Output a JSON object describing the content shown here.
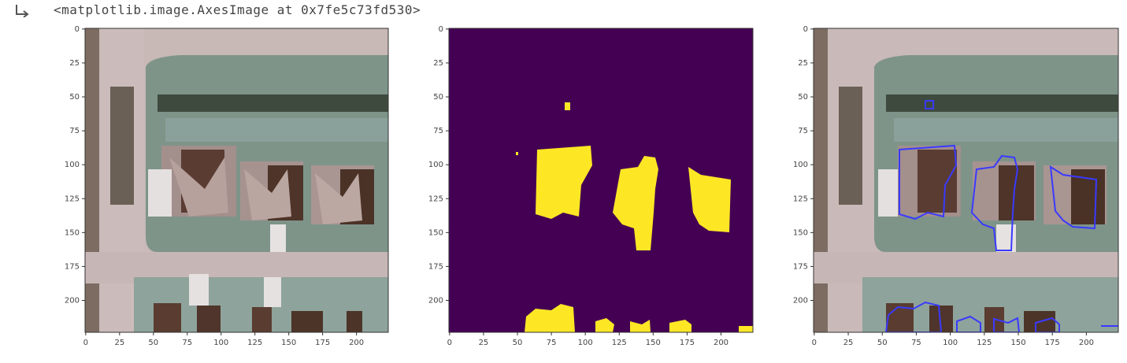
{
  "cell_output": {
    "prompt_icon": "output-arrow-icon",
    "repr_text": "<matplotlib.image.AxesImage at 0x7fe5c73fd530>"
  },
  "figure": {
    "panels": [
      {
        "name": "rgb-image",
        "xticks": [
          "0",
          "25",
          "50",
          "75",
          "100",
          "125",
          "150",
          "175",
          "200"
        ],
        "yticks": [
          "0",
          "25",
          "50",
          "75",
          "100",
          "125",
          "150",
          "175",
          "200"
        ]
      },
      {
        "name": "mask-image",
        "xticks": [
          "0",
          "25",
          "50",
          "75",
          "100",
          "125",
          "150",
          "175",
          "200"
        ],
        "yticks": [
          "0",
          "25",
          "50",
          "75",
          "100",
          "125",
          "150",
          "175",
          "200"
        ]
      },
      {
        "name": "overlay-image",
        "xticks": [
          "0",
          "25",
          "50",
          "75",
          "100",
          "125",
          "150",
          "175",
          "200"
        ],
        "yticks": [
          "0",
          "25",
          "50",
          "75",
          "100",
          "125",
          "150",
          "175",
          "200"
        ]
      }
    ],
    "colors": {
      "mask_background": "#440154",
      "mask_foreground": "#fde725",
      "contour": "#3a3aff"
    }
  }
}
